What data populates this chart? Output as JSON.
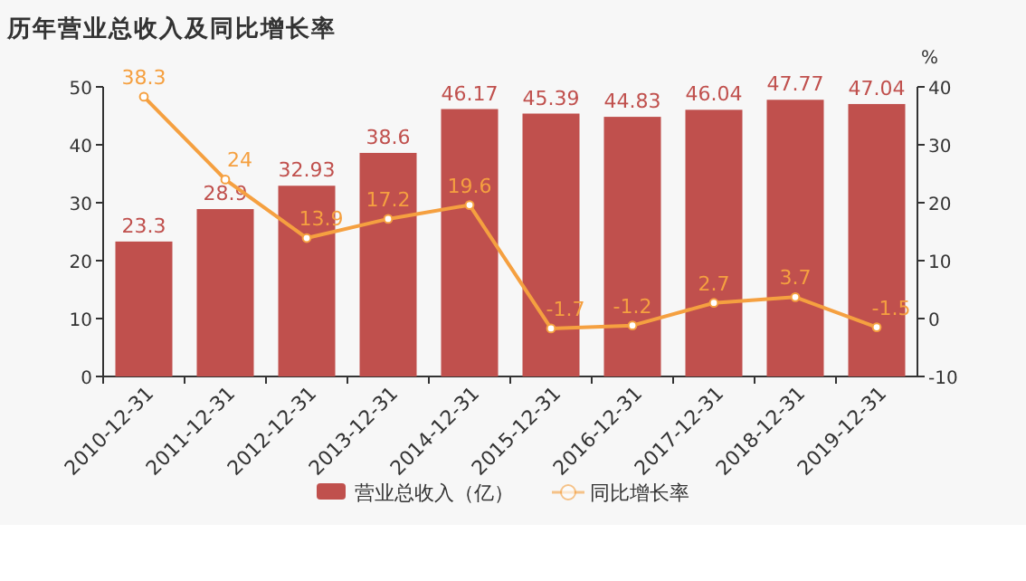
{
  "chart_data": {
    "type": "bar",
    "title": "历年营业总收入及同比增长率",
    "y2label": "%",
    "categories": [
      "2010-12-31",
      "2011-12-31",
      "2012-12-31",
      "2013-12-31",
      "2014-12-31",
      "2015-12-31",
      "2016-12-31",
      "2017-12-31",
      "2018-12-31",
      "2019-12-31"
    ],
    "series": [
      {
        "name": "营业总收入（亿）",
        "color": "#c0504d",
        "values": [
          23.3,
          28.9,
          32.93,
          38.6,
          46.17,
          45.39,
          44.83,
          46.04,
          47.77,
          47.04
        ]
      },
      {
        "name": "同比增长率",
        "type": "line",
        "axis": "y2",
        "marker": "circle",
        "color": "#f5a040",
        "values": [
          38.3,
          24,
          13.9,
          17.2,
          19.6,
          -1.7,
          -1.2,
          2.7,
          3.7,
          -1.5
        ]
      }
    ],
    "ylim": [
      0,
      50
    ],
    "yticks": [
      0,
      10,
      20,
      30,
      40,
      50
    ],
    "y2lim": [
      -10,
      40
    ],
    "y2ticks": [
      -10,
      0,
      10,
      20,
      30,
      40
    ],
    "legend": "bottom",
    "data_labels": true
  }
}
